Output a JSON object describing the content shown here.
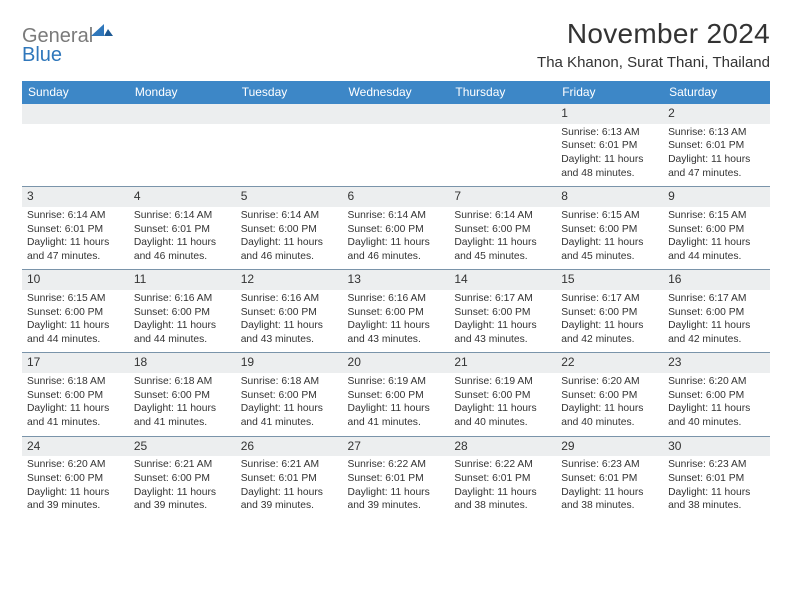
{
  "logo": {
    "grey": "General",
    "blue": "Blue"
  },
  "title": "November 2024",
  "subtitle": "Tha Khanon, Surat Thani, Thailand",
  "colors": {
    "header_bg": "#3d87c7",
    "header_text": "#ffffff",
    "daynum_bg": "#eceeef",
    "border": "#7a94aa",
    "logo_grey": "#7a7a7a",
    "logo_blue": "#2f77bb"
  },
  "dayHeaders": [
    "Sunday",
    "Monday",
    "Tuesday",
    "Wednesday",
    "Thursday",
    "Friday",
    "Saturday"
  ],
  "weeks": [
    [
      null,
      null,
      null,
      null,
      null,
      {
        "n": "1",
        "sr": "6:13 AM",
        "ss": "6:01 PM",
        "dl": "11 hours and 48 minutes."
      },
      {
        "n": "2",
        "sr": "6:13 AM",
        "ss": "6:01 PM",
        "dl": "11 hours and 47 minutes."
      }
    ],
    [
      {
        "n": "3",
        "sr": "6:14 AM",
        "ss": "6:01 PM",
        "dl": "11 hours and 47 minutes."
      },
      {
        "n": "4",
        "sr": "6:14 AM",
        "ss": "6:01 PM",
        "dl": "11 hours and 46 minutes."
      },
      {
        "n": "5",
        "sr": "6:14 AM",
        "ss": "6:00 PM",
        "dl": "11 hours and 46 minutes."
      },
      {
        "n": "6",
        "sr": "6:14 AM",
        "ss": "6:00 PM",
        "dl": "11 hours and 46 minutes."
      },
      {
        "n": "7",
        "sr": "6:14 AM",
        "ss": "6:00 PM",
        "dl": "11 hours and 45 minutes."
      },
      {
        "n": "8",
        "sr": "6:15 AM",
        "ss": "6:00 PM",
        "dl": "11 hours and 45 minutes."
      },
      {
        "n": "9",
        "sr": "6:15 AM",
        "ss": "6:00 PM",
        "dl": "11 hours and 44 minutes."
      }
    ],
    [
      {
        "n": "10",
        "sr": "6:15 AM",
        "ss": "6:00 PM",
        "dl": "11 hours and 44 minutes."
      },
      {
        "n": "11",
        "sr": "6:16 AM",
        "ss": "6:00 PM",
        "dl": "11 hours and 44 minutes."
      },
      {
        "n": "12",
        "sr": "6:16 AM",
        "ss": "6:00 PM",
        "dl": "11 hours and 43 minutes."
      },
      {
        "n": "13",
        "sr": "6:16 AM",
        "ss": "6:00 PM",
        "dl": "11 hours and 43 minutes."
      },
      {
        "n": "14",
        "sr": "6:17 AM",
        "ss": "6:00 PM",
        "dl": "11 hours and 43 minutes."
      },
      {
        "n": "15",
        "sr": "6:17 AM",
        "ss": "6:00 PM",
        "dl": "11 hours and 42 minutes."
      },
      {
        "n": "16",
        "sr": "6:17 AM",
        "ss": "6:00 PM",
        "dl": "11 hours and 42 minutes."
      }
    ],
    [
      {
        "n": "17",
        "sr": "6:18 AM",
        "ss": "6:00 PM",
        "dl": "11 hours and 41 minutes."
      },
      {
        "n": "18",
        "sr": "6:18 AM",
        "ss": "6:00 PM",
        "dl": "11 hours and 41 minutes."
      },
      {
        "n": "19",
        "sr": "6:18 AM",
        "ss": "6:00 PM",
        "dl": "11 hours and 41 minutes."
      },
      {
        "n": "20",
        "sr": "6:19 AM",
        "ss": "6:00 PM",
        "dl": "11 hours and 41 minutes."
      },
      {
        "n": "21",
        "sr": "6:19 AM",
        "ss": "6:00 PM",
        "dl": "11 hours and 40 minutes."
      },
      {
        "n": "22",
        "sr": "6:20 AM",
        "ss": "6:00 PM",
        "dl": "11 hours and 40 minutes."
      },
      {
        "n": "23",
        "sr": "6:20 AM",
        "ss": "6:00 PM",
        "dl": "11 hours and 40 minutes."
      }
    ],
    [
      {
        "n": "24",
        "sr": "6:20 AM",
        "ss": "6:00 PM",
        "dl": "11 hours and 39 minutes."
      },
      {
        "n": "25",
        "sr": "6:21 AM",
        "ss": "6:00 PM",
        "dl": "11 hours and 39 minutes."
      },
      {
        "n": "26",
        "sr": "6:21 AM",
        "ss": "6:01 PM",
        "dl": "11 hours and 39 minutes."
      },
      {
        "n": "27",
        "sr": "6:22 AM",
        "ss": "6:01 PM",
        "dl": "11 hours and 39 minutes."
      },
      {
        "n": "28",
        "sr": "6:22 AM",
        "ss": "6:01 PM",
        "dl": "11 hours and 38 minutes."
      },
      {
        "n": "29",
        "sr": "6:23 AM",
        "ss": "6:01 PM",
        "dl": "11 hours and 38 minutes."
      },
      {
        "n": "30",
        "sr": "6:23 AM",
        "ss": "6:01 PM",
        "dl": "11 hours and 38 minutes."
      }
    ]
  ],
  "labels": {
    "sunrise": "Sunrise: ",
    "sunset": "Sunset: ",
    "daylight": "Daylight: "
  }
}
